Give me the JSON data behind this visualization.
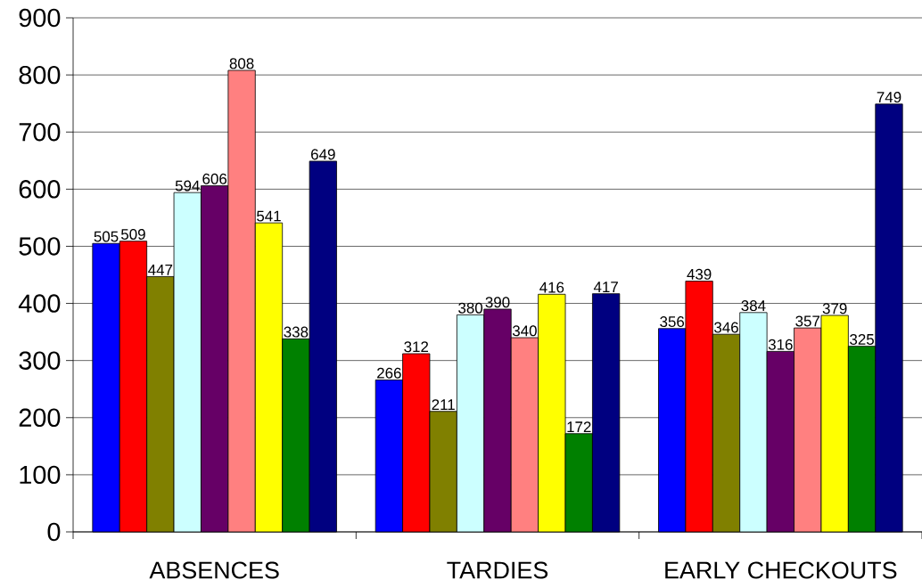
{
  "chart_data": {
    "type": "bar",
    "categories": [
      "ABSENCES",
      "TARDIES",
      "EARLY CHECKOUTS"
    ],
    "series": [
      {
        "color": "#0000ff",
        "values": [
          505,
          266,
          356
        ]
      },
      {
        "color": "#ff0000",
        "values": [
          509,
          312,
          439
        ]
      },
      {
        "color": "#808000",
        "values": [
          447,
          211,
          346
        ]
      },
      {
        "color": "#ccffff",
        "values": [
          594,
          380,
          384
        ]
      },
      {
        "color": "#660066",
        "values": [
          606,
          390,
          316
        ]
      },
      {
        "color": "#ff8080",
        "values": [
          808,
          340,
          357
        ]
      },
      {
        "color": "#ffff00",
        "values": [
          541,
          416,
          379
        ]
      },
      {
        "color": "#008000",
        "values": [
          338,
          172,
          325
        ]
      },
      {
        "color": "#000080",
        "values": [
          649,
          417,
          749
        ]
      }
    ],
    "ylim": [
      0,
      900
    ],
    "yticks": [
      0,
      100,
      200,
      300,
      400,
      500,
      600,
      700,
      800,
      900
    ],
    "grid": "y",
    "data_labels": true
  }
}
